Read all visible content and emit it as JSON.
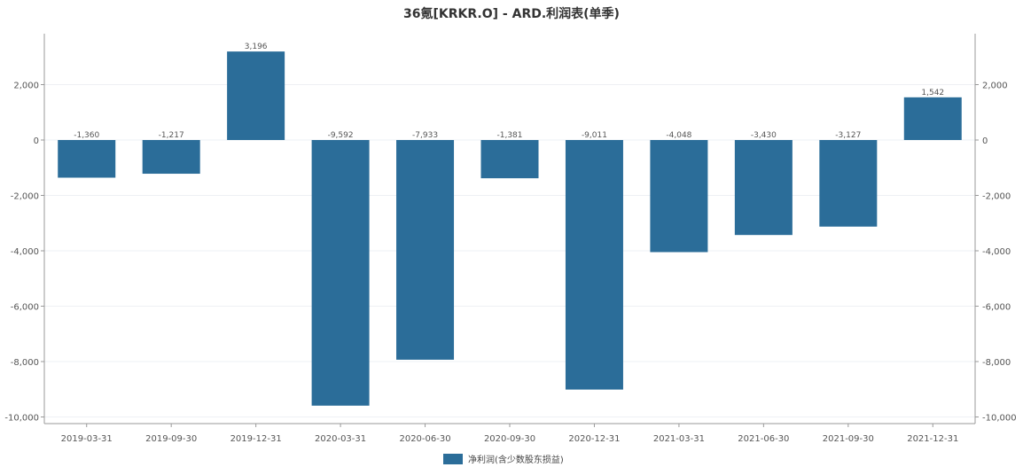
{
  "chart_data": {
    "type": "bar",
    "title": "36氪[KRKR.O] - ARD.利润表(单季)",
    "categories": [
      "2019-03-31",
      "2019-09-30",
      "2019-12-31",
      "2020-03-31",
      "2020-06-30",
      "2020-09-30",
      "2020-12-31",
      "2021-03-31",
      "2021-06-30",
      "2021-09-30",
      "2021-12-31"
    ],
    "series": [
      {
        "name": "净利润(含少数股东损益)",
        "values": [
          -1360,
          -1217,
          3196,
          -9592,
          -7933,
          -1381,
          -9011,
          -4048,
          -3430,
          -3127,
          1542
        ],
        "data_labels": [
          "-1,360",
          "-1,217",
          "3,196",
          "-9,592",
          "-7,933",
          "-1,381",
          "-9,011",
          "-4,048",
          "-3,430",
          "-3,127",
          "1,542"
        ],
        "color": "#2b6d99"
      }
    ],
    "ylim": [
      -10000,
      4000
    ],
    "y_ticks": [
      -10000,
      -8000,
      -6000,
      -4000,
      -2000,
      0,
      2000
    ],
    "y_tick_labels": [
      "-10,000",
      "-8,000",
      "-6,000",
      "-4,000",
      "-2,000",
      "0",
      "2,000"
    ],
    "legend_position": "bottom-center",
    "grid": true,
    "secondary_axis": true
  }
}
